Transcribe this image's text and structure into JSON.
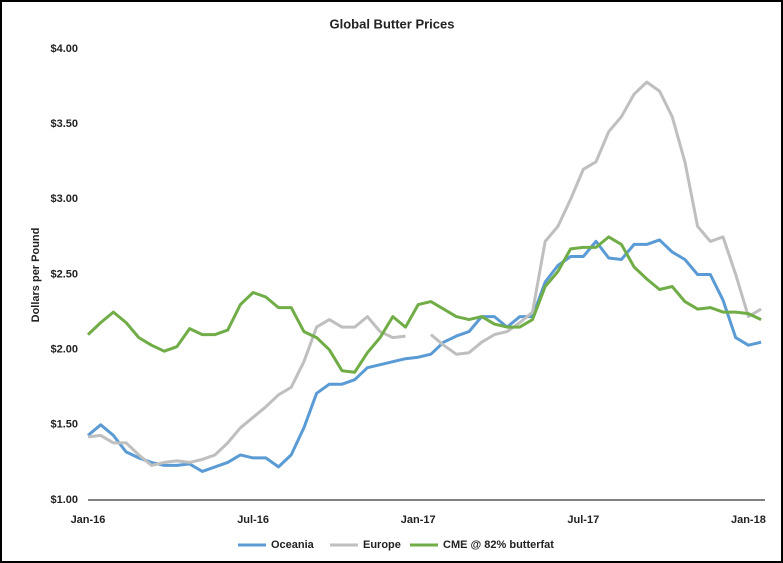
{
  "chart_data": {
    "type": "line",
    "title": "Global Butter Prices",
    "ylabel": "Dollars per Pound",
    "categories": [
      "Jan-16",
      null,
      null,
      null,
      null,
      null,
      null,
      null,
      null,
      null,
      null,
      null,
      null,
      "Jul-16",
      null,
      null,
      null,
      null,
      null,
      null,
      null,
      null,
      null,
      null,
      null,
      null,
      "Jan-17",
      null,
      null,
      null,
      null,
      null,
      null,
      null,
      null,
      null,
      null,
      null,
      null,
      "Jul-17",
      null,
      null,
      null,
      null,
      null,
      null,
      null,
      null,
      null,
      null,
      null,
      null,
      "Jan-18",
      null
    ],
    "series": [
      {
        "name": "Oceania",
        "color": "#5b9bd5",
        "values": [
          1.43,
          1.5,
          1.43,
          1.32,
          1.28,
          1.25,
          1.23,
          1.23,
          1.24,
          1.19,
          1.22,
          1.25,
          1.3,
          1.28,
          1.28,
          1.22,
          1.3,
          1.48,
          1.71,
          1.77,
          1.77,
          1.8,
          1.88,
          1.9,
          1.92,
          1.94,
          1.95,
          1.97,
          2.05,
          2.09,
          2.12,
          2.22,
          2.22,
          2.15,
          2.22,
          2.22,
          2.45,
          2.56,
          2.62,
          2.62,
          2.72,
          2.61,
          2.6,
          2.7,
          2.7,
          2.73,
          2.65,
          2.6,
          2.5,
          2.5,
          2.33,
          2.08,
          2.03,
          2.05
        ]
      },
      {
        "name": "Europe",
        "color": "#bfbfbf",
        "values": [
          1.42,
          1.43,
          1.38,
          1.38,
          1.3,
          1.23,
          1.25,
          1.26,
          1.25,
          1.27,
          1.3,
          1.38,
          1.48,
          1.55,
          1.62,
          1.7,
          1.75,
          1.92,
          2.15,
          2.2,
          2.15,
          2.15,
          2.22,
          2.12,
          2.08,
          2.09,
          null,
          2.1,
          2.03,
          1.97,
          1.98,
          2.05,
          2.1,
          2.12,
          2.18,
          2.25,
          2.72,
          2.82,
          3.0,
          3.2,
          3.25,
          3.45,
          3.55,
          3.7,
          3.78,
          3.72,
          3.55,
          3.25,
          2.82,
          2.72,
          2.75,
          2.5,
          2.22,
          2.27
        ]
      },
      {
        "name": "CME @ 82% butterfat",
        "color": "#70ad47",
        "values": [
          2.1,
          2.18,
          2.25,
          2.18,
          2.08,
          2.03,
          1.99,
          2.02,
          2.14,
          2.1,
          2.1,
          2.13,
          2.3,
          2.38,
          2.35,
          2.28,
          2.28,
          2.12,
          2.08,
          2.0,
          1.86,
          1.85,
          1.98,
          2.08,
          2.22,
          2.15,
          2.3,
          2.32,
          2.27,
          2.22,
          2.2,
          2.22,
          2.17,
          2.15,
          2.15,
          2.2,
          2.42,
          2.52,
          2.67,
          2.68,
          2.68,
          2.75,
          2.7,
          2.55,
          2.47,
          2.4,
          2.42,
          2.32,
          2.27,
          2.28,
          2.25,
          2.25,
          2.24,
          2.2
        ]
      }
    ],
    "ylim": [
      1,
      4
    ],
    "yticks": [
      {
        "value": 1,
        "label": "$1.00"
      },
      {
        "value": 1.5,
        "label": "$1.50"
      },
      {
        "value": 2,
        "label": "$2.00"
      },
      {
        "value": 2.5,
        "label": "$2.50"
      },
      {
        "value": 3,
        "label": "$3.00"
      },
      {
        "value": 3.5,
        "label": "$3.50"
      },
      {
        "value": 4,
        "label": "$4.00"
      }
    ],
    "grid": false,
    "legend": "bottom"
  }
}
